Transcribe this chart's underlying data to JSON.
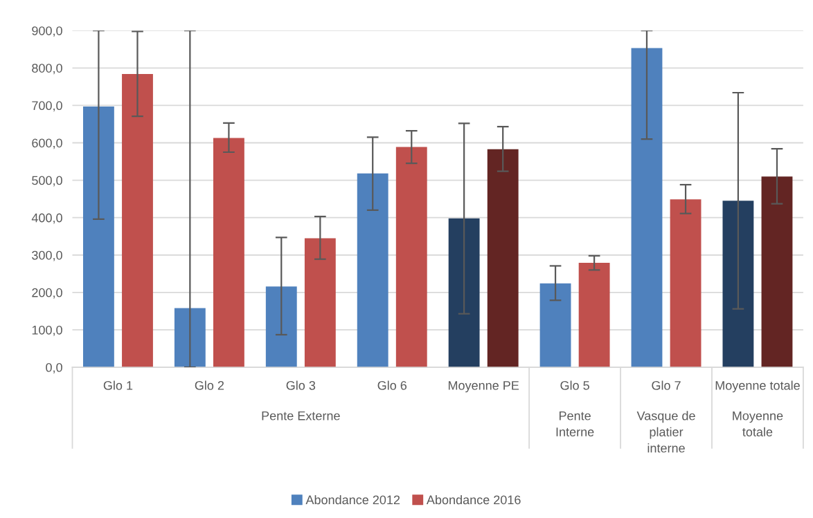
{
  "chart_data": {
    "type": "bar",
    "categories": [
      "Glo 1",
      "Glo 2",
      "Glo 3",
      "Glo 6",
      "Moyenne PE",
      "Glo 5",
      "Glo 7",
      "Moyenne totale"
    ],
    "series": [
      {
        "name": "Abondance 2012",
        "color": "#4f81bd",
        "colors": [
          "#4f81bd",
          "#4f81bd",
          "#4f81bd",
          "#4f81bd",
          "#243f60",
          "#4f81bd",
          "#4f81bd",
          "#243f60"
        ],
        "values": [
          697,
          158,
          216,
          518,
          398,
          224,
          853,
          445
        ],
        "errors": [
          [
            396,
            900
          ],
          [
            0,
            900
          ],
          [
            87,
            347
          ],
          [
            420,
            615
          ],
          [
            143,
            652
          ],
          [
            179,
            271
          ],
          [
            610,
            900
          ],
          [
            156,
            734
          ]
        ]
      },
      {
        "name": "Abondance 2016",
        "color": "#c0504d",
        "colors": [
          "#c0504d",
          "#c0504d",
          "#c0504d",
          "#c0504d",
          "#632523",
          "#c0504d",
          "#c0504d",
          "#632523"
        ],
        "values": [
          784,
          613,
          345,
          589,
          583,
          279,
          449,
          510
        ],
        "errors": [
          [
            671,
            898
          ],
          [
            575,
            653
          ],
          [
            289,
            403
          ],
          [
            545,
            632
          ],
          [
            524,
            643
          ],
          [
            260,
            298
          ],
          [
            411,
            488
          ],
          [
            437,
            584
          ]
        ]
      }
    ],
    "annotations": [
      "Pente Externe",
      "Pente\nInterne",
      "Vasque de\nplatier\ninterne",
      "Moyenne\ntotale"
    ],
    "ylim": [
      0,
      900
    ],
    "yticks": [
      {
        "value": 0,
        "label": "0,0"
      },
      {
        "value": 100,
        "label": "100,0"
      },
      {
        "value": 200,
        "label": "200,0"
      },
      {
        "value": 300,
        "label": "300,0"
      },
      {
        "value": 400,
        "label": "400,0"
      },
      {
        "value": 500,
        "label": "500,0"
      },
      {
        "value": 600,
        "label": "600,0"
      },
      {
        "value": 700,
        "label": "700,0"
      },
      {
        "value": 800,
        "label": "800,0"
      },
      {
        "value": 900,
        "label": "900,0"
      }
    ],
    "grid": "y",
    "legend": "bottom"
  }
}
